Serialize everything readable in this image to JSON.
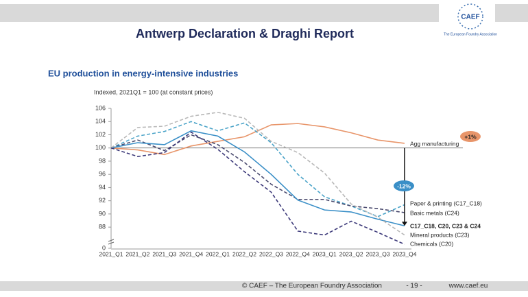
{
  "header": {
    "title": "Antwerp Declaration & Draghi Report"
  },
  "logo": {
    "name": "CAEF",
    "tagline": "The European Foundry Association"
  },
  "footer": {
    "copyright": "© CAEF – The European Foundry Association",
    "page": "- 19 -",
    "url": "www.caef.eu"
  },
  "chart_data": {
    "type": "line",
    "title": "EU production in energy-intensive industries",
    "subtitle": "Indexed, 2021Q1 = 100 (at constant prices)",
    "categories": [
      "2021_Q1",
      "2021_Q2",
      "2021_Q3",
      "2021_Q4",
      "2022_Q1",
      "2022_Q2",
      "2022_Q3",
      "2022_Q4",
      "2023_Q1",
      "2023_Q2",
      "2023_Q3",
      "2023_Q4"
    ],
    "ylim": [
      85,
      106
    ],
    "yticks": [
      0,
      88,
      90,
      92,
      94,
      96,
      98,
      100,
      102,
      104,
      106
    ],
    "axis_break": true,
    "series": [
      {
        "name": "Agg manufacturing",
        "color": "#e8956a",
        "dashed": false,
        "values": [
          100,
          99.7,
          99.0,
          100.3,
          101.0,
          101.7,
          103.5,
          103.7,
          103.2,
          102.3,
          101.2,
          100.7
        ]
      },
      {
        "name": "Paper & printing (C17_C18)",
        "color": "#4aa3c8",
        "dashed": true,
        "values": [
          100,
          101.8,
          102.5,
          104.0,
          102.6,
          103.8,
          100.8,
          96.0,
          92.6,
          91.2,
          89.6,
          91.4
        ]
      },
      {
        "name": "Basic metals (C24)",
        "color": "#4a4a6e",
        "dashed": true,
        "values": [
          100,
          101.2,
          99.6,
          102.0,
          100.5,
          97.8,
          94.5,
          92.2,
          92.2,
          91.2,
          90.8,
          90.2
        ]
      },
      {
        "name": "C17_C18, C20, C23 & C24",
        "color": "#3a8fc7",
        "dashed": false,
        "values": [
          100,
          100.8,
          100.5,
          102.6,
          101.8,
          99.4,
          96.0,
          92.1,
          90.6,
          90.3,
          89.2,
          88.2
        ]
      },
      {
        "name": "Mineral products (C23)",
        "color": "#b8b8b8",
        "dashed": true,
        "values": [
          100,
          103.1,
          103.3,
          104.8,
          105.4,
          104.5,
          101.0,
          99.3,
          96.2,
          91.5,
          89.5,
          86.8
        ]
      },
      {
        "name": "Chemicals (C20)",
        "color": "#3d3a7a",
        "dashed": true,
        "values": [
          100,
          98.7,
          99.3,
          102.4,
          99.8,
          96.4,
          93.3,
          87.4,
          86.8,
          88.9,
          87.2,
          85.4
        ]
      }
    ],
    "annotations": [
      {
        "text": "+1%",
        "color": "#e8956a"
      },
      {
        "text": "-12%",
        "color": "#3a8fc7"
      }
    ]
  }
}
